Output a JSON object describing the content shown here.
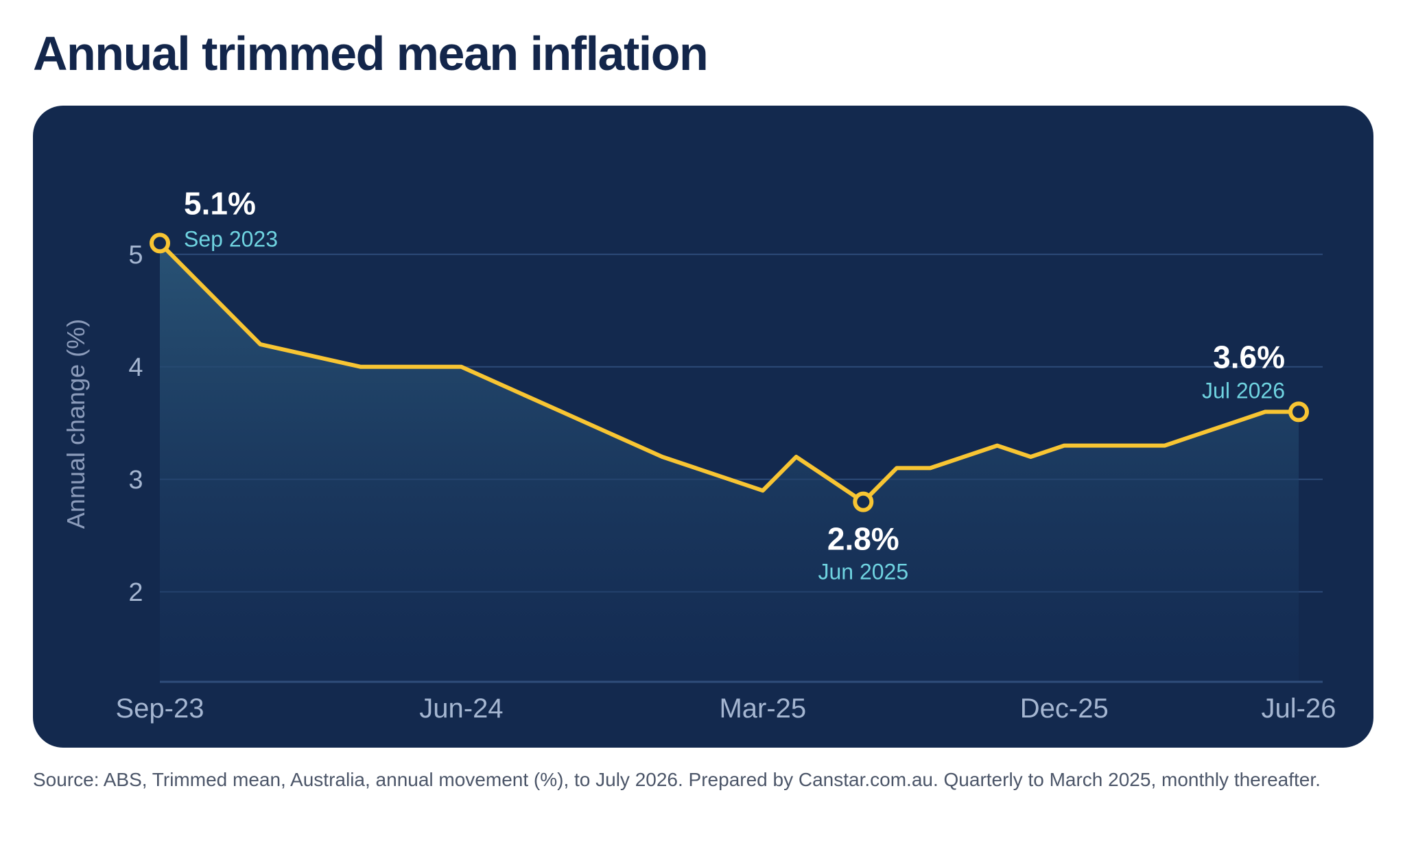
{
  "title": "Annual trimmed mean inflation",
  "source": "Source: ABS, Trimmed mean, Australia, annual movement (%), to July 2026. Prepared by Canstar.com.au. Quarterly to March 2025, monthly thereafter.",
  "colors": {
    "panel": "#13294e",
    "line": "#f8c533",
    "annotation_date": "#6fd3e0",
    "grid": "#2d4a78",
    "tick": "#a5b6d1"
  },
  "chart_data": {
    "type": "area",
    "title": "Annual trimmed mean inflation",
    "xlabel": "",
    "ylabel": "Annual change (%)",
    "ylim": [
      1.2,
      5.2
    ],
    "yticks": [
      2,
      3,
      4,
      5
    ],
    "grid": true,
    "xticks": [
      {
        "label": "Sep-23",
        "date": "2023-09"
      },
      {
        "label": "Jun-24",
        "date": "2024-06"
      },
      {
        "label": "Mar-25",
        "date": "2025-03"
      },
      {
        "label": "Dec-25",
        "date": "2025-12"
      },
      {
        "label": "Jul-26",
        "date": "2026-07"
      }
    ],
    "series": [
      {
        "x": [
          "2023-09",
          "2023-12",
          "2024-03",
          "2024-06",
          "2024-09",
          "2024-12",
          "2025-03",
          "2025-04",
          "2025-05",
          "2025-06",
          "2025-07",
          "2025-08",
          "2025-09",
          "2025-10",
          "2025-11",
          "2025-12",
          "2026-01",
          "2026-02",
          "2026-03",
          "2026-04",
          "2026-05",
          "2026-06",
          "2026-07"
        ],
        "values": [
          5.1,
          4.2,
          4.0,
          4.0,
          3.6,
          3.2,
          2.9,
          3.2,
          3.0,
          2.8,
          3.1,
          3.1,
          3.2,
          3.3,
          3.2,
          3.3,
          3.3,
          3.3,
          3.3,
          3.4,
          3.5,
          3.6,
          3.6
        ]
      }
    ],
    "annotations": [
      {
        "date": "2023-09",
        "value_label": "5.1%",
        "date_label": "Sep 2023",
        "value": 5.1
      },
      {
        "date": "2025-06",
        "value_label": "2.8%",
        "date_label": "Jun 2025",
        "value": 2.8
      },
      {
        "date": "2026-07",
        "value_label": "3.6%",
        "date_label": "Jul 2026",
        "value": 3.6
      }
    ]
  }
}
